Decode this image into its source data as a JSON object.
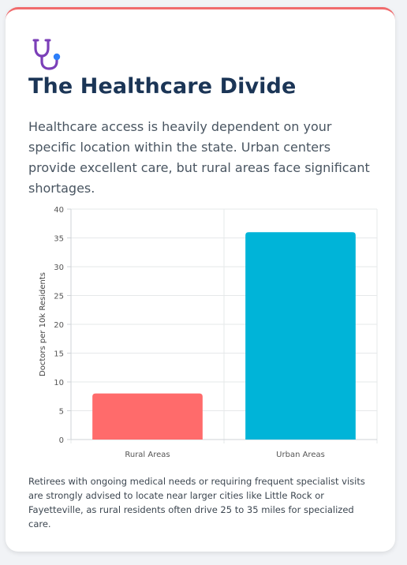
{
  "header": {
    "icon": "stethoscope-icon",
    "title": "The Healthcare Divide",
    "lede": "Healthcare access is heavily dependent on your specific location within the state. Urban centers provide excellent care, but rural areas face significant shortages."
  },
  "chart_data": {
    "type": "bar",
    "categories": [
      "Rural Areas",
      "Urban Areas"
    ],
    "values": [
      8,
      36
    ],
    "colors": [
      "#ff6b6b",
      "#00b4d8"
    ],
    "title": "",
    "xlabel": "",
    "ylabel": "Doctors per 10k Residents",
    "ylim": [
      0,
      40
    ],
    "yticks": [
      0,
      5,
      10,
      15,
      20,
      25,
      30,
      35,
      40
    ],
    "grid": true,
    "legend": "none"
  },
  "footnote": "Retirees with ongoing medical needs or requiring frequent specialist visits are strongly advised to locate near larger cities like Little Rock or Fayetteville, as rural residents often drive 25 to 35 miles for specialized care.",
  "colors": {
    "accent": "#f06b6d",
    "title": "#1b3556",
    "icon_primary": "#7b3fb8",
    "icon_secondary": "#2d7ff9"
  }
}
